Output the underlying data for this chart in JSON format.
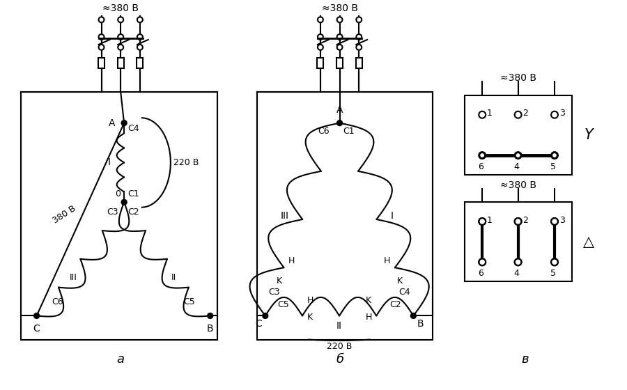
{
  "bg_color": "#ffffff",
  "line_color": "#000000",
  "title_a": "а",
  "title_b": "б",
  "title_v": "в",
  "voltage_380": "≈380 В",
  "voltage_220": "220 В",
  "voltage_380_plain": "380 В"
}
